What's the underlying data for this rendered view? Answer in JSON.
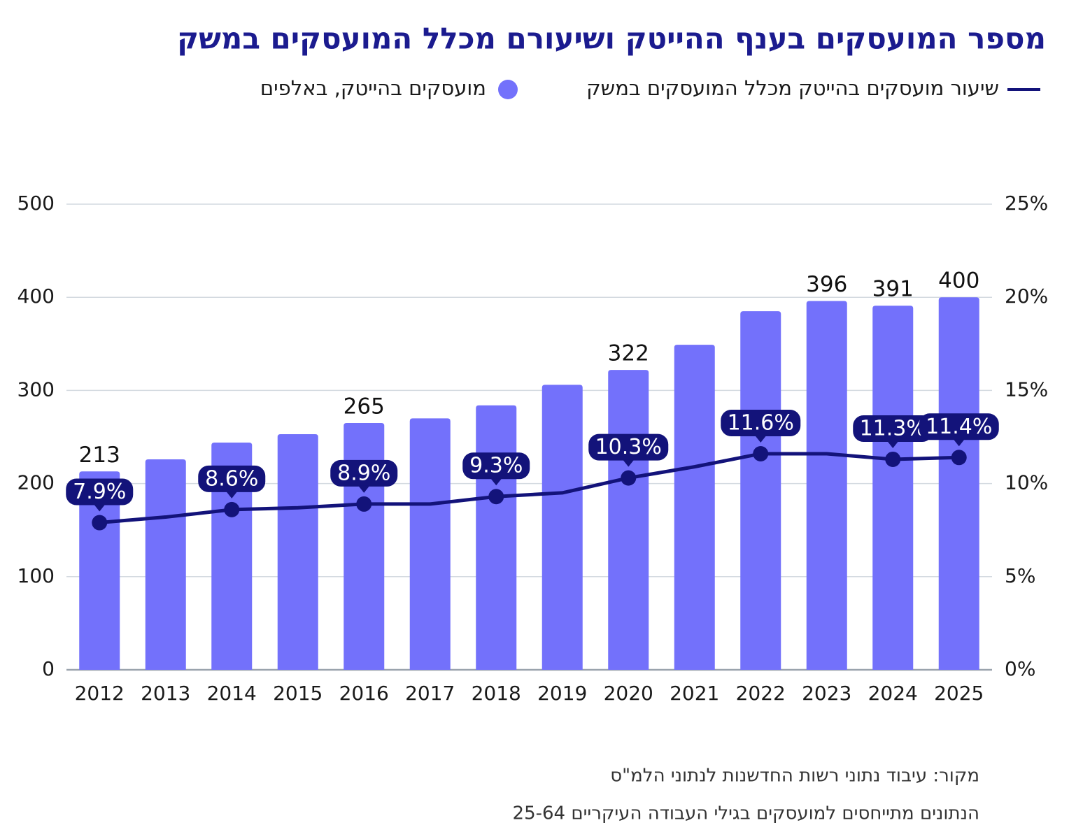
{
  "chart_data": {
    "type": "bar",
    "title": "מספר המועסקים בענף ההייטק ושיעורם מכלל המועסקים במשק",
    "categories": [
      "2012",
      "2013",
      "2014",
      "2015",
      "2016",
      "2017",
      "2018",
      "2019",
      "2020",
      "2021",
      "2022",
      "2023",
      "2024",
      "2025"
    ],
    "series": [
      {
        "name": "מועסקים בהייטק, באלפים",
        "type": "bar",
        "color": "#7371fb",
        "values": [
          213,
          226,
          244,
          253,
          265,
          270,
          284,
          306,
          322,
          349,
          385,
          396,
          391,
          400
        ],
        "value_labels": [
          "213",
          null,
          null,
          null,
          "265",
          null,
          null,
          null,
          "322",
          null,
          null,
          "396",
          "391",
          "400"
        ]
      },
      {
        "name": "שיעור מועסקים בהייטק מכלל המועסקים במשק",
        "type": "line",
        "color": "#13137a",
        "axis": "y2",
        "values": [
          7.9,
          8.2,
          8.6,
          8.7,
          8.9,
          8.9,
          9.3,
          9.5,
          10.3,
          10.9,
          11.6,
          11.6,
          11.3,
          11.4
        ],
        "value_labels": [
          "7.9%",
          null,
          "8.6%",
          null,
          "8.9%",
          null,
          "9.3%",
          null,
          "10.3%",
          null,
          "11.6%",
          null,
          "11.3%",
          "11.4%"
        ]
      }
    ],
    "ylim": [
      0,
      500
    ],
    "yticks": [
      0,
      100,
      200,
      300,
      400,
      500
    ],
    "y2lim": [
      0,
      25
    ],
    "y2ticks": [
      {
        "value": 0,
        "label": "0%"
      },
      {
        "value": 5,
        "label": "5%"
      },
      {
        "value": 10,
        "label": "10%"
      },
      {
        "value": 15,
        "label": "15%"
      },
      {
        "value": 20,
        "label": "20%"
      },
      {
        "value": 25,
        "label": "25%"
      }
    ],
    "grid": true,
    "source": "מקור: עיבוד נתוני רשות החדשנות לנתוני הלמ\"ס",
    "note": "הנתונים מתייחסים למועסקים בגילי העבודה העיקריים 25-64"
  }
}
